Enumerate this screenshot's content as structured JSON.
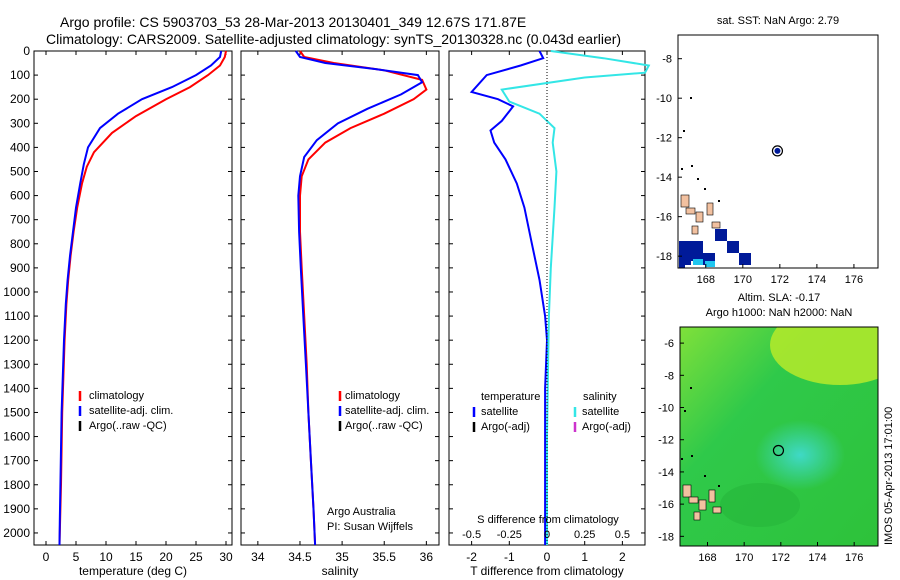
{
  "header": {
    "line1": "Argo profile: CS 5903703_53 28-Mar-2013 20130401_349 12.67S 171.87E",
    "line2": "Climatology: CARS2009. Satellite-adjusted climatology: synTS_20130328.nc (0.043d earlier)"
  },
  "footer_stamp": "IMOS 05-Apr-2013 17:01:00",
  "colors": {
    "climatology": "#ff0000",
    "satellite": "#0000ff",
    "argo": "#000000",
    "sat_salinity": "#33e6e6",
    "argo_salinity_adj": "#cc33cc",
    "ocean_dark": "#001a99",
    "ocean_light": "#1fc6f0",
    "land": "#f2c1a0"
  },
  "chart_data": [
    {
      "id": "temperature",
      "type": "line",
      "xlabel": "temperature (deg C)",
      "ylabel": "",
      "xlim": [
        -2,
        31
      ],
      "ylim": [
        2050,
        0
      ],
      "xticks": [
        0,
        5,
        10,
        15,
        20,
        25,
        30
      ],
      "yticks": [
        0,
        100,
        200,
        300,
        400,
        500,
        600,
        700,
        800,
        900,
        1000,
        1100,
        1200,
        1300,
        1400,
        1500,
        1600,
        1700,
        1800,
        1900,
        2000
      ],
      "legend": [
        "climatology",
        "satellite-adj. clim.",
        "Argo(..raw -QC)"
      ],
      "series": [
        {
          "name": "climatology",
          "color": "#ff0000",
          "x": [
            30,
            29.8,
            29,
            27,
            24,
            20,
            15,
            11,
            8,
            6.8,
            6,
            5.2,
            4.6,
            4.1,
            3.7,
            3.4,
            3.1,
            2.9,
            2.7,
            2.6,
            2.5,
            2.4,
            2.3,
            2.25
          ],
          "y": [
            0,
            25,
            60,
            100,
            150,
            200,
            270,
            340,
            420,
            480,
            550,
            650,
            750,
            850,
            950,
            1050,
            1200,
            1350,
            1500,
            1650,
            1800,
            1900,
            2000,
            2050
          ]
        },
        {
          "name": "satellite-adj. clim.",
          "color": "#0000ff",
          "x": [
            29.2,
            29,
            27.5,
            25,
            21,
            16,
            12,
            9,
            7,
            6.3,
            5.7,
            5,
            4.5,
            4,
            3.6,
            3.3,
            3,
            2.8,
            2.6,
            2.5,
            2.4,
            2.3,
            2.25
          ],
          "y": [
            0,
            25,
            60,
            100,
            150,
            200,
            260,
            320,
            400,
            470,
            550,
            650,
            750,
            850,
            950,
            1050,
            1200,
            1350,
            1500,
            1650,
            1800,
            1950,
            2050
          ]
        }
      ]
    },
    {
      "id": "salinity",
      "type": "line",
      "xlabel": "salinity",
      "ylabel": "",
      "xlim": [
        33.8,
        36.15
      ],
      "ylim": [
        2050,
        0
      ],
      "xticks": [
        34,
        34.5,
        35,
        35.5,
        36
      ],
      "legend": [
        "climatology",
        "satellite-adj. clim.",
        "Argo(..raw -QC)"
      ],
      "annotation_lines": [
        "Argo Australia",
        "PI: Susan Wijffels"
      ],
      "series": [
        {
          "name": "climatology",
          "color": "#ff0000",
          "x": [
            34.5,
            34.55,
            34.9,
            35.5,
            35.95,
            36.0,
            35.85,
            35.5,
            35.1,
            34.8,
            34.6,
            34.52,
            34.5,
            34.5,
            34.52,
            34.55,
            34.58,
            34.6,
            34.63,
            34.66,
            34.68
          ],
          "y": [
            0,
            25,
            50,
            80,
            120,
            160,
            200,
            260,
            320,
            380,
            450,
            520,
            600,
            750,
            900,
            1100,
            1300,
            1500,
            1700,
            1900,
            2050
          ]
        },
        {
          "name": "satellite-adj. clim.",
          "color": "#0000ff",
          "x": [
            34.45,
            34.5,
            34.8,
            35.4,
            35.9,
            35.95,
            35.7,
            35.3,
            34.95,
            34.7,
            34.55,
            34.5,
            34.48,
            34.49,
            34.51,
            34.54,
            34.57,
            34.6,
            34.63,
            34.66,
            34.68
          ],
          "y": [
            0,
            25,
            50,
            75,
            100,
            130,
            180,
            240,
            300,
            370,
            440,
            520,
            600,
            750,
            900,
            1100,
            1300,
            1500,
            1700,
            1900,
            2050
          ]
        }
      ]
    },
    {
      "id": "difference",
      "type": "line",
      "xlabel": "T difference from climatology",
      "xlabel_top": "S difference from climatology",
      "xlim": [
        -2.6,
        2.6
      ],
      "ylim": [
        2050,
        0
      ],
      "xticks_T": [
        -2,
        -1,
        0,
        1,
        2
      ],
      "xticks_S": [
        "-0.5",
        "-0.25",
        "0",
        "0.25",
        "0.5"
      ],
      "legend_temperature": {
        "title": "temperature",
        "items": [
          "satellite",
          "Argo(-adj)"
        ]
      },
      "legend_salinity": {
        "title": "salinity",
        "items": [
          "satellite",
          "Argo(-adj)"
        ]
      },
      "series": [
        {
          "name": "satellite",
          "color": "#0000ff",
          "x": [
            -0.2,
            -0.1,
            -0.7,
            -1.6,
            -2.0,
            -1.3,
            -0.9,
            -1.2,
            -1.5,
            -1.4,
            -1.1,
            -0.8,
            -0.6,
            -0.4,
            -0.2,
            -0.05,
            0.0,
            -0.05,
            -0.05,
            -0.05,
            -0.05
          ],
          "y": [
            0,
            30,
            60,
            100,
            170,
            200,
            230,
            290,
            330,
            380,
            450,
            550,
            650,
            800,
            950,
            1100,
            1200,
            1400,
            1600,
            1800,
            2050
          ]
        },
        {
          "name": "salinity satellite",
          "color": "#33e6e6",
          "x": [
            0.1,
            1.5,
            2.7,
            2.6,
            1.0,
            -1.2,
            -1.0,
            -0.2,
            0.2,
            0.15,
            0.25,
            0.2,
            0.1,
            0.05,
            0.03,
            0.0,
            0.0
          ],
          "y": [
            0,
            30,
            60,
            90,
            110,
            160,
            210,
            260,
            320,
            380,
            500,
            650,
            900,
            1100,
            1300,
            1600,
            2050
          ]
        }
      ]
    },
    {
      "id": "sst_map",
      "type": "heatmap",
      "title": "sat. SST: NaN Argo: 2.79",
      "xlim": [
        166.5,
        177.3
      ],
      "ylim": [
        -18.6,
        -6.8
      ],
      "xticks": [
        168,
        170,
        172,
        174,
        176
      ],
      "yticks": [
        -8,
        -10,
        -12,
        -14,
        -16,
        -18
      ],
      "argo_position": {
        "lon": 171.87,
        "lat": -12.67
      }
    },
    {
      "id": "sla_map",
      "type": "heatmap",
      "title1": "Altim. SLA: -0.17",
      "title2": "Argo h1000: NaN h2000: NaN",
      "xlim": [
        166.5,
        177.3
      ],
      "ylim": [
        -18.6,
        -5.0
      ],
      "xticks": [
        168,
        170,
        172,
        174,
        176
      ],
      "yticks": [
        -6,
        -8,
        -10,
        -12,
        -14,
        -16,
        -18
      ],
      "argo_position": {
        "lon": 171.87,
        "lat": -12.67
      }
    }
  ]
}
